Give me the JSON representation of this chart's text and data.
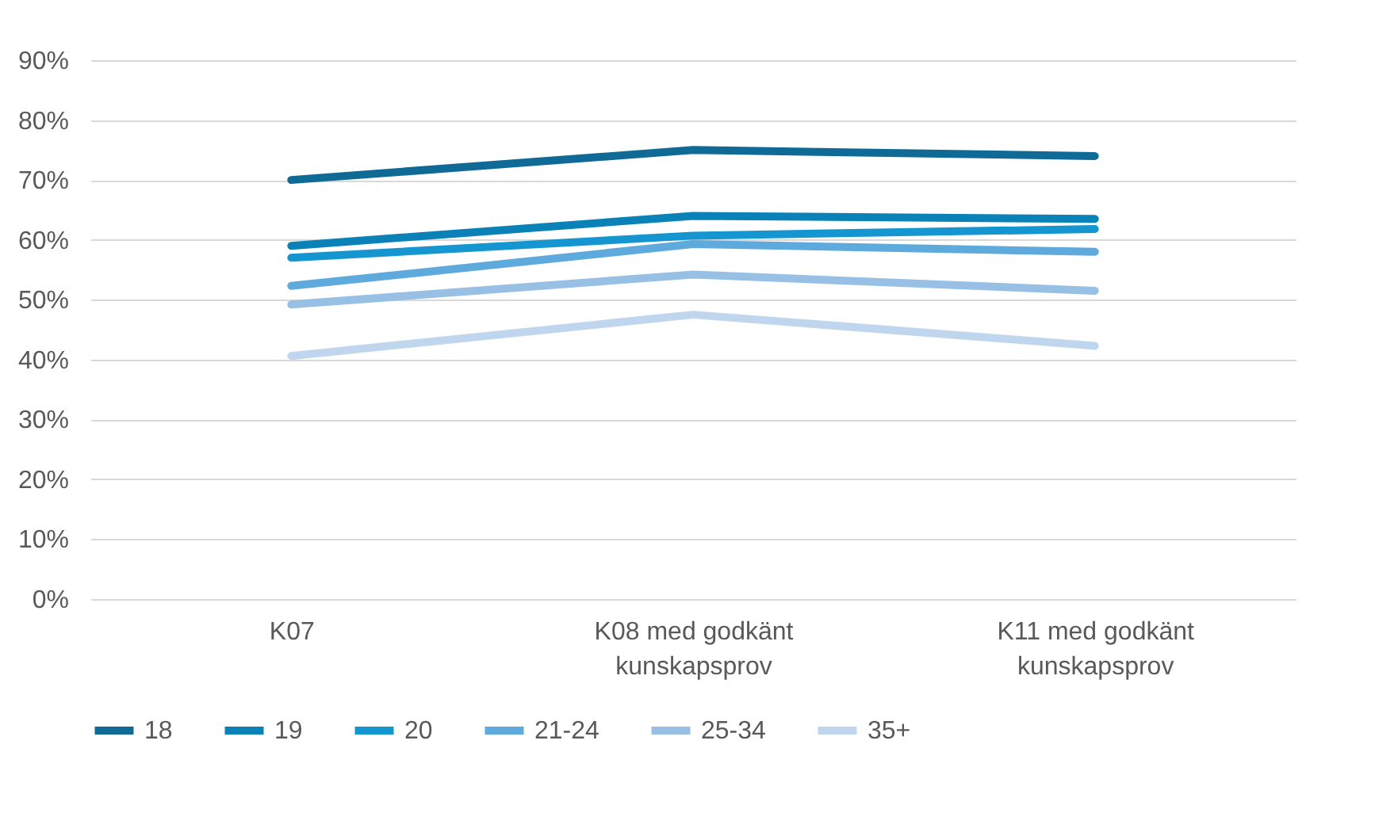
{
  "chart_data": {
    "type": "line",
    "categories": [
      "K07",
      "K08 med godkänt kunskapsprov",
      "K11 med godkänt kunskapsprov"
    ],
    "series": [
      {
        "name": "18",
        "color": "#0f6b96",
        "values": [
          70,
          75,
          74
        ]
      },
      {
        "name": "19",
        "color": "#0a82b8",
        "values": [
          59,
          64,
          63.5
        ]
      },
      {
        "name": "20",
        "color": "#1596d0",
        "values": [
          57,
          60.7,
          61.8
        ]
      },
      {
        "name": "21-24",
        "color": "#5eaadc",
        "values": [
          52.3,
          59.3,
          58
        ]
      },
      {
        "name": "25-34",
        "color": "#97c0e4",
        "values": [
          49.2,
          54.2,
          51.5
        ]
      },
      {
        "name": "35+",
        "color": "#c0d6ee",
        "values": [
          40.6,
          47.5,
          42.3
        ]
      }
    ],
    "ylim": [
      0,
      90
    ],
    "yticks": [
      {
        "value": 0,
        "label": "0%"
      },
      {
        "value": 10,
        "label": "10%"
      },
      {
        "value": 20,
        "label": "20%"
      },
      {
        "value": 30,
        "label": "30%"
      },
      {
        "value": 40,
        "label": "40%"
      },
      {
        "value": 50,
        "label": "50%"
      },
      {
        "value": 60,
        "label": "60%"
      },
      {
        "value": 70,
        "label": "70%"
      },
      {
        "value": 80,
        "label": "80%"
      },
      {
        "value": 90,
        "label": "90%"
      }
    ],
    "grid": "y",
    "legend": "bottom",
    "marker": "none",
    "line_style": "solid"
  }
}
